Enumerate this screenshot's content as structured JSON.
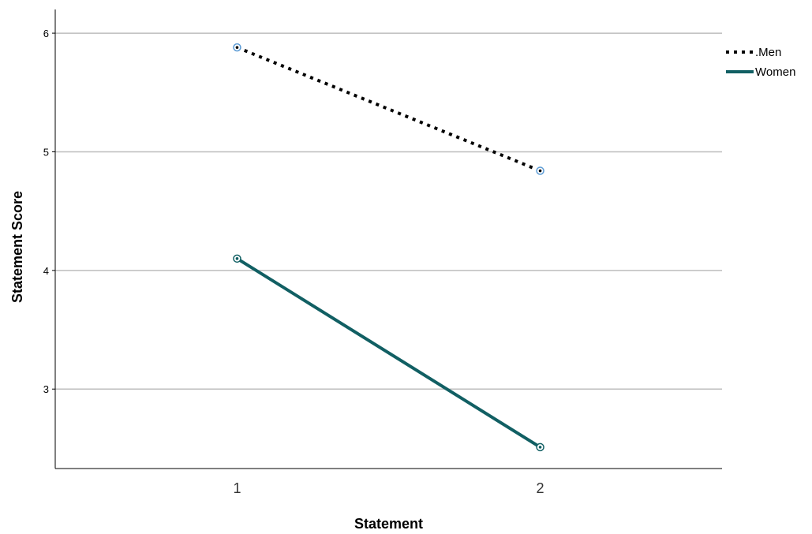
{
  "chart_data": {
    "type": "line",
    "x": [
      1,
      2
    ],
    "xticks": [
      "1",
      "2"
    ],
    "yticks": [
      "3",
      "4",
      "5",
      "6"
    ],
    "xlabel": "Statement",
    "ylabel": "Statement Score",
    "xlim": [
      0.4,
      2.6
    ],
    "ylim": [
      2.33,
      6.2
    ],
    "grid": "horizontal",
    "legend_position": "top-right",
    "series": [
      {
        "name": ".Men",
        "values": [
          5.88,
          4.84
        ],
        "color": "#000000",
        "line_style": "dotted",
        "marker_color": "#5b9bd5"
      },
      {
        "name": "Women",
        "values": [
          4.1,
          2.51
        ],
        "color": "#115f63",
        "line_style": "solid",
        "marker_color": "#115f63"
      }
    ]
  }
}
